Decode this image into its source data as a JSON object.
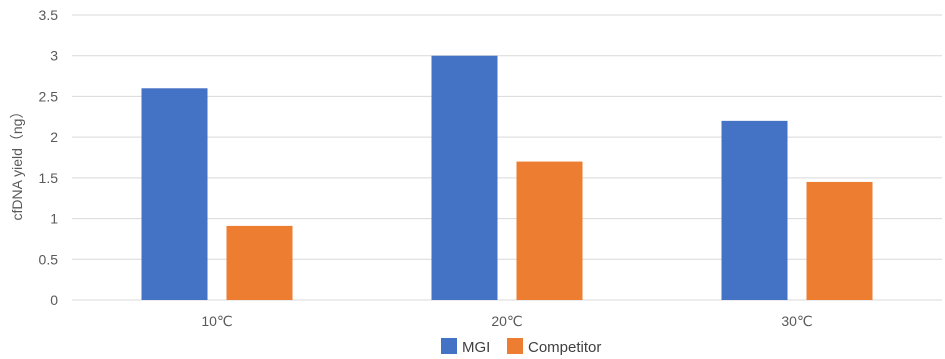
{
  "chart_data": {
    "type": "bar",
    "title": "",
    "xlabel": "",
    "ylabel": "cfDNA  yield（ng）",
    "ylim": [
      0,
      3.5
    ],
    "yticks": [
      0,
      0.5,
      1,
      1.5,
      2,
      2.5,
      3,
      3.5
    ],
    "ytick_labels": [
      "0",
      "0.5",
      "1",
      "1.5",
      "2",
      "2.5",
      "3",
      "3.5"
    ],
    "categories": [
      "10℃",
      "20℃",
      "30℃"
    ],
    "series": [
      {
        "name": "MGI",
        "color": "#4472c4",
        "values": [
          2.6,
          3.0,
          2.2
        ]
      },
      {
        "name": "Competitor",
        "color": "#ed7d31",
        "values": [
          0.91,
          1.7,
          1.45
        ]
      }
    ],
    "grid": true,
    "legend_position": "bottom"
  }
}
